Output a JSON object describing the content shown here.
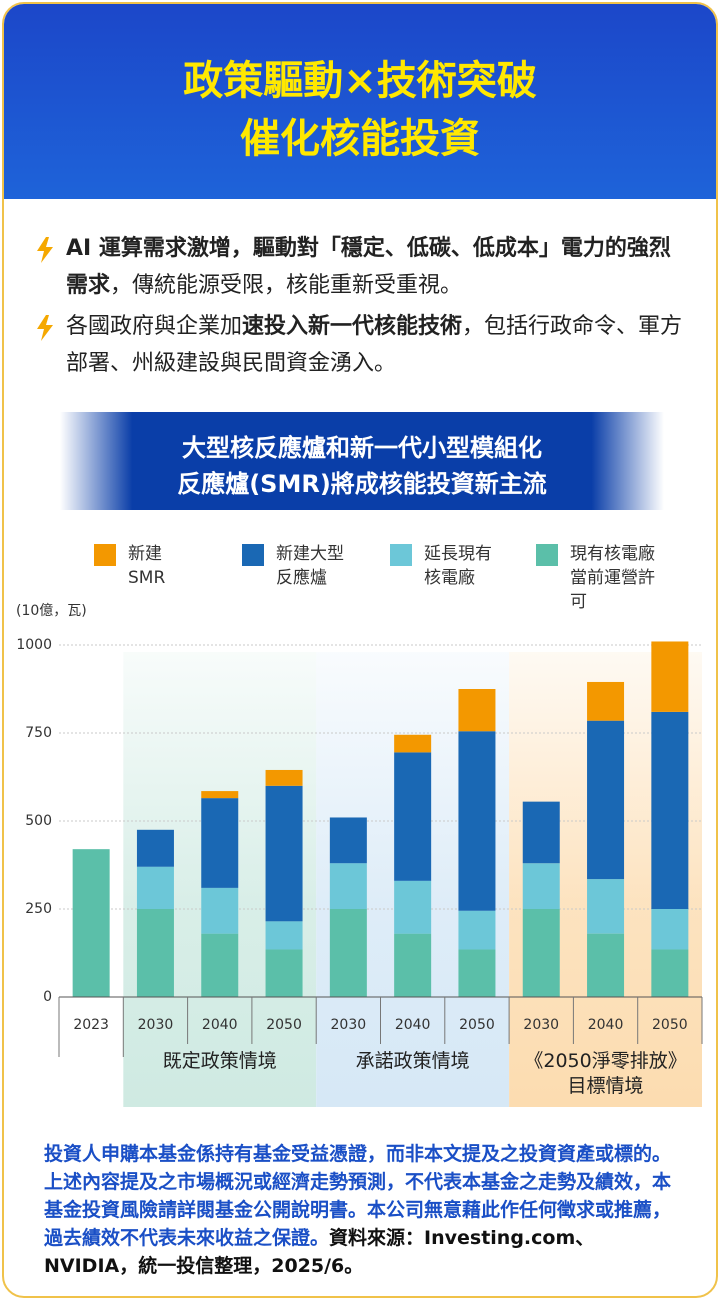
{
  "header": {
    "title_lines": [
      "政策驅動×技術突破",
      "催化核能投資"
    ]
  },
  "bullets": [
    [
      {
        "text": "AI 運算需求激增，驅動對「穩定、低碳、低成本」電力的強烈需求",
        "bold": true
      },
      {
        "text": "，傳統能源受限，核能重新受重視。",
        "bold": false
      }
    ],
    [
      {
        "text": "各國政府與企業加",
        "bold": false
      },
      {
        "text": "速投入新一代核能技術",
        "bold": true
      },
      {
        "text": "，包括行政命令、軍方部署、州級建設與民間資金湧入。",
        "bold": false
      }
    ]
  ],
  "chart_data": {
    "type": "stacked_bar",
    "title_lines": [
      "大型核反應爐和新一代小型模組化",
      "反應爐(SMR)將成核能投資新主流"
    ],
    "y_label": "(10億，瓦)",
    "groups": [
      {
        "categories": [
          "2023"
        ]
      },
      {
        "label": "既定政策情境",
        "categories": [
          "2030",
          "2040",
          "2050"
        ],
        "color": "#cfeae2"
      },
      {
        "label": "承諾政策情境",
        "categories": [
          "2030",
          "2040",
          "2050"
        ],
        "color": "#d6e8f6"
      },
      {
        "label": "《2050淨零排放》目標情境",
        "categories": [
          "2030",
          "2040",
          "2050"
        ],
        "color": "#fcdcb0"
      }
    ],
    "series": [
      {
        "name": "現有核電廠當前運營許可",
        "color": "#5bbfa9",
        "values": [
          420,
          250,
          180,
          135,
          250,
          180,
          135,
          250,
          180,
          135
        ]
      },
      {
        "name": "延長現有核電廠",
        "color": "#6cc7d8",
        "values": [
          null,
          120,
          130,
          80,
          130,
          150,
          110,
          130,
          155,
          115
        ]
      },
      {
        "name": "新建大型反應爐",
        "color": "#1a68b4",
        "values": [
          null,
          105,
          255,
          385,
          130,
          365,
          510,
          175,
          450,
          560
        ]
      },
      {
        "name": "新建SMR",
        "color": "#f39800",
        "values": [
          null,
          null,
          20,
          45,
          null,
          50,
          120,
          null,
          110,
          200
        ]
      }
    ],
    "ylim": [
      0,
      1000
    ],
    "yticks": [
      0,
      250,
      500,
      750,
      1000
    ],
    "grid": true
  },
  "footer": {
    "disclaimer": "投資人申購本基金係持有基金受益憑證，而非本文提及之投資資產或標的。上述內容提及之市場概況或經濟走勢預測，不代表本基金之走勢及績效，本基金投資風險請詳閱基金公開說明書。本公司無意藉此作任何徵求或推薦，過去績效不代表未來收益之保證。",
    "source": "資料來源：Investing.com、NVIDIA，統一投信整理，2025/6。"
  }
}
